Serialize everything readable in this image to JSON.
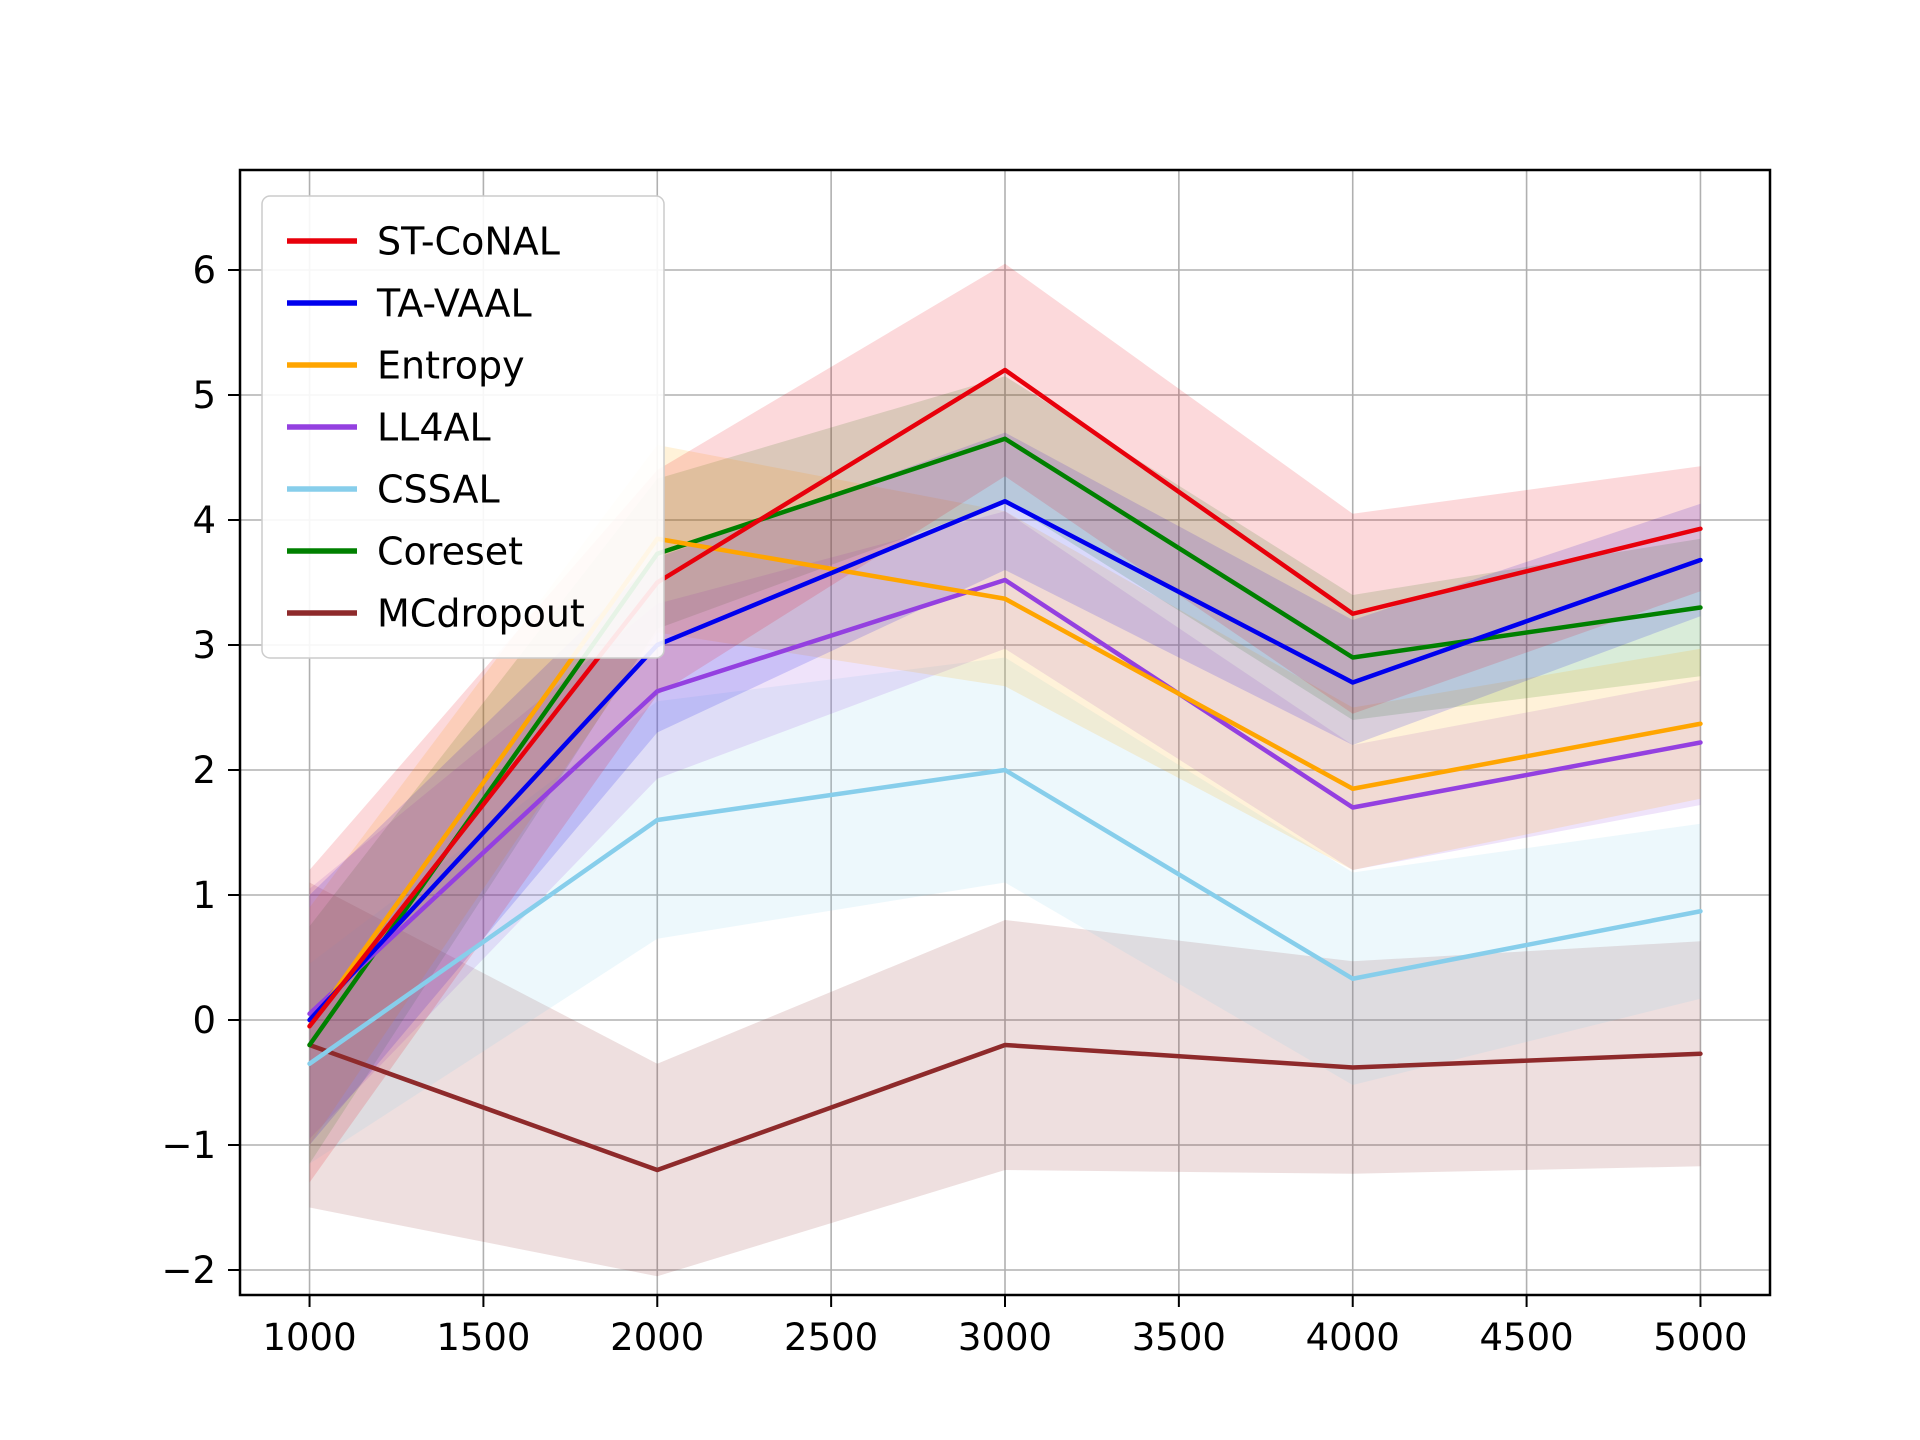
{
  "figure": {
    "background": "#ffffff",
    "axes_edge_color": "#000000",
    "grid_color": "#b0b0b0"
  },
  "chart_data": {
    "type": "line",
    "title": "",
    "xlabel": "",
    "ylabel": "",
    "x": [
      1000,
      2000,
      3000,
      4000,
      5000
    ],
    "x_ticks": [
      1000,
      1500,
      2000,
      2500,
      3000,
      3500,
      4000,
      4500,
      5000
    ],
    "y_ticks": [
      -2,
      -1,
      0,
      1,
      2,
      3,
      4,
      5,
      6
    ],
    "xlim": [
      800,
      5200
    ],
    "ylim": [
      -2.2,
      6.8
    ],
    "grid": true,
    "legend_position": "upper left",
    "band_opacity": 0.15,
    "series": [
      {
        "name": "ST-CoNAL",
        "color": "#e8000b",
        "values": [
          -0.05,
          3.5,
          5.2,
          3.25,
          3.93
        ],
        "band": [
          1.25,
          0.9,
          0.85,
          0.8,
          0.5
        ]
      },
      {
        "name": "TA-VAAL",
        "color": "#0000ee",
        "values": [
          0.0,
          3.0,
          4.15,
          2.7,
          3.68
        ],
        "band": [
          1.0,
          0.7,
          0.55,
          0.5,
          0.45
        ]
      },
      {
        "name": "Entropy",
        "color": "#ffa500",
        "values": [
          -0.05,
          3.85,
          3.37,
          1.85,
          2.37
        ],
        "band": [
          0.95,
          0.75,
          0.7,
          0.65,
          0.6
        ]
      },
      {
        "name": "LL4AL",
        "color": "#9440e0",
        "values": [
          0.05,
          2.63,
          3.52,
          1.7,
          2.22
        ],
        "band": [
          1.0,
          0.7,
          0.55,
          0.5,
          0.5
        ]
      },
      {
        "name": "CSSAL",
        "color": "#87ceeb",
        "values": [
          -0.35,
          1.6,
          2.0,
          0.33,
          0.87
        ],
        "band": [
          0.8,
          0.95,
          0.9,
          0.85,
          0.7
        ]
      },
      {
        "name": "Coreset",
        "color": "#008000",
        "values": [
          -0.2,
          3.73,
          4.65,
          2.9,
          3.3
        ],
        "band": [
          0.95,
          0.6,
          0.5,
          0.5,
          0.55
        ]
      },
      {
        "name": "MCdropout",
        "color": "#8e2a2b",
        "values": [
          -0.2,
          -1.2,
          -0.2,
          -0.38,
          -0.27
        ],
        "band": [
          1.3,
          0.85,
          1.0,
          0.85,
          0.9
        ]
      }
    ]
  }
}
